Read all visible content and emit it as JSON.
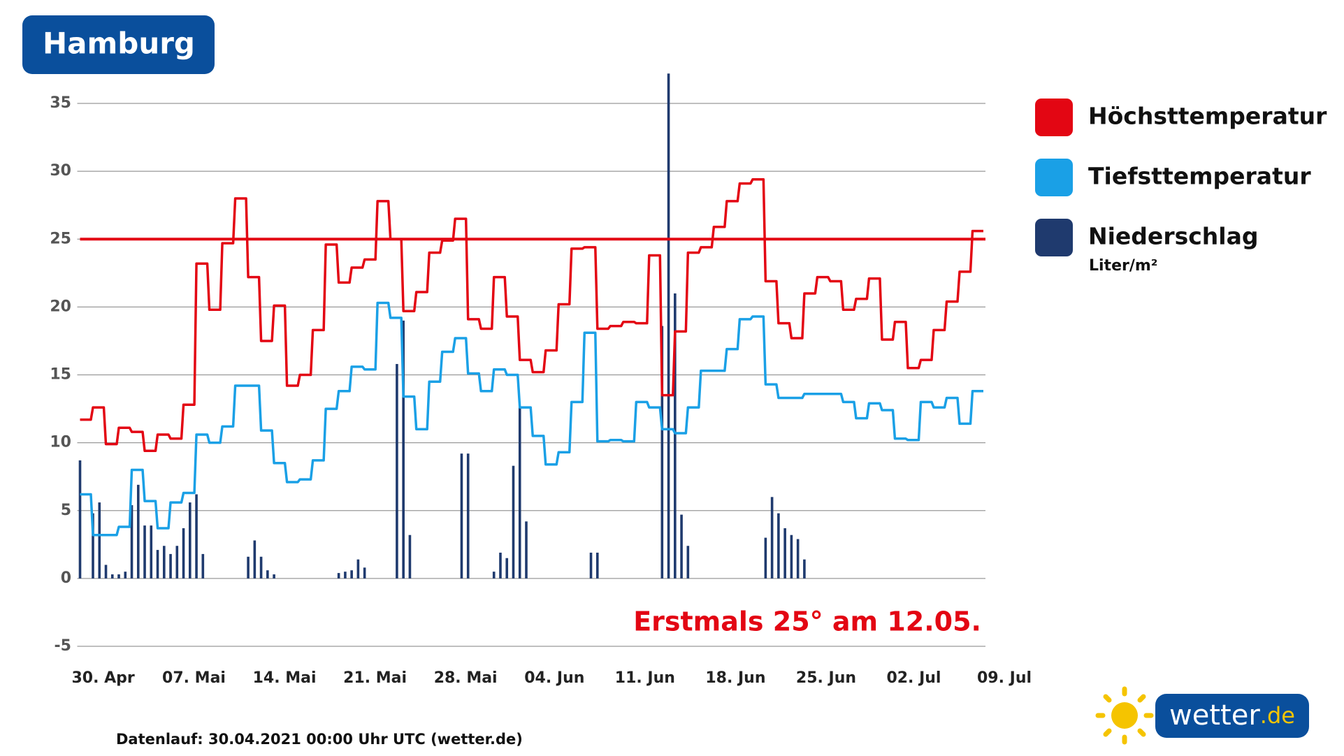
{
  "chart_data": {
    "type": "line",
    "title": "Hamburg",
    "annotation": "Erstmals 25° am 12.05.",
    "footer": "Datenlauf: 30.04.2021 00:00 Uhr UTC (wetter.de)",
    "logo": {
      "name": "wetter",
      "suffix": ".de"
    },
    "unit_label": "Liter/m²",
    "xlim": [
      0,
      70
    ],
    "xticks": [
      {
        "value": 0,
        "label": "30. Apr"
      },
      {
        "value": 7,
        "label": "07. Mai"
      },
      {
        "value": 14,
        "label": "14. Mai"
      },
      {
        "value": 21,
        "label": "21. Mai"
      },
      {
        "value": 28,
        "label": "28. Mai"
      },
      {
        "value": 35,
        "label": "04. Jun"
      },
      {
        "value": 42,
        "label": "11. Jun"
      },
      {
        "value": 49,
        "label": "18. Jun"
      },
      {
        "value": 56,
        "label": "25. Jun"
      },
      {
        "value": 63,
        "label": "02. Jul"
      },
      {
        "value": 70,
        "label": "09. Jul"
      }
    ],
    "ylim": [
      -5,
      35
    ],
    "yticks": [
      -5,
      0,
      5,
      10,
      15,
      20,
      25,
      30,
      35
    ],
    "grid": true,
    "reference_line": {
      "value": 25,
      "color": "#e30613"
    },
    "series": [
      {
        "name": "Höchsttemperatur",
        "type": "step",
        "color": "#e30613",
        "x": [
          0,
          1,
          2,
          3,
          4,
          5,
          6,
          7,
          8,
          9,
          10,
          11,
          12,
          13,
          14,
          15,
          16,
          17,
          18,
          19,
          20,
          21,
          22,
          23,
          24,
          25,
          26,
          27,
          28,
          29,
          30,
          31,
          32,
          33,
          34,
          35,
          36,
          37,
          38,
          39,
          40,
          41,
          42,
          43,
          44,
          45,
          46,
          47,
          48,
          49,
          50,
          51,
          52,
          53,
          54,
          55,
          56,
          57,
          58,
          59,
          60,
          61,
          62,
          63,
          64,
          65,
          66,
          67,
          68,
          69
        ],
        "values": [
          11.7,
          12.6,
          9.9,
          11.1,
          10.8,
          9.4,
          10.6,
          10.3,
          12.8,
          23.2,
          19.8,
          24.7,
          28,
          22.2,
          17.5,
          20.1,
          14.2,
          15,
          18.3,
          24.6,
          21.8,
          22.9,
          23.5,
          27.8,
          25,
          19.7,
          21.1,
          24,
          24.9,
          26.5,
          19.1,
          18.4,
          22.2,
          19.3,
          16.1,
          15.2,
          16.8,
          20.2,
          24.3,
          24.4,
          18.4,
          18.6,
          18.9,
          18.8,
          23.8,
          13.5,
          18.2,
          24,
          24.4,
          25.9,
          27.8,
          29.1,
          29.4,
          21.9,
          18.8,
          17.7,
          21,
          22.2,
          21.9,
          19.8,
          20.6,
          22.1,
          17.6,
          18.9,
          15.5,
          16.1,
          18.3,
          20.4,
          22.6,
          25.6
        ]
      },
      {
        "name": "Tiefsttemperatur",
        "type": "step",
        "color": "#1aa0e6",
        "x": [
          0,
          1,
          2,
          3,
          4,
          5,
          6,
          7,
          8,
          9,
          10,
          11,
          12,
          13,
          14,
          15,
          16,
          17,
          18,
          19,
          20,
          21,
          22,
          23,
          24,
          25,
          26,
          27,
          28,
          29,
          30,
          31,
          32,
          33,
          34,
          35,
          36,
          37,
          38,
          39,
          40,
          41,
          42,
          43,
          44,
          45,
          46,
          47,
          48,
          49,
          50,
          51,
          52,
          53,
          54,
          55,
          56,
          57,
          58,
          59,
          60,
          61,
          62,
          63,
          64,
          65,
          66,
          67,
          68,
          69
        ],
        "values": [
          6.2,
          3.2,
          3.2,
          3.8,
          8,
          5.7,
          3.7,
          5.6,
          6.3,
          10.6,
          10,
          11.2,
          14.2,
          14.2,
          10.9,
          8.5,
          7.1,
          7.3,
          8.7,
          12.5,
          13.8,
          15.6,
          15.4,
          20.3,
          19.2,
          13.4,
          11,
          14.5,
          16.7,
          17.7,
          15.1,
          13.8,
          15.4,
          15,
          12.6,
          10.5,
          8.4,
          9.3,
          13,
          18.1,
          10.1,
          10.2,
          10.1,
          13,
          12.6,
          11,
          10.7,
          12.6,
          15.3,
          15.3,
          16.9,
          19.1,
          19.3,
          14.3,
          13.3,
          13.3,
          13.6,
          13.6,
          13.6,
          13,
          11.8,
          12.9,
          12.4,
          10.3,
          10.2,
          13,
          12.6,
          13.3,
          11.4,
          13.8
        ]
      },
      {
        "name": "Niederschlag",
        "type": "bar",
        "color": "#1f3a6e",
        "x": [
          0,
          1,
          1.5,
          2,
          2.5,
          3,
          3.5,
          4,
          4.5,
          5,
          5.5,
          6,
          6.5,
          7,
          7.5,
          8,
          8.5,
          9,
          9.5,
          13,
          13.5,
          14,
          14.5,
          15,
          20,
          20.5,
          21,
          21.5,
          22,
          24.5,
          25,
          25.5,
          29.5,
          30,
          32,
          32.5,
          33,
          33.5,
          34,
          34.5,
          39.5,
          40,
          45,
          45.5,
          46,
          46.5,
          47,
          53,
          53.5,
          54,
          54.5,
          55,
          55.5,
          56
        ],
        "values": [
          8.7,
          4.8,
          5.6,
          1,
          0.3,
          0.3,
          0.5,
          5.4,
          6.9,
          3.9,
          3.9,
          2.1,
          2.4,
          1.8,
          2.4,
          3.7,
          5.6,
          6.2,
          1.8,
          1.6,
          2.8,
          1.6,
          0.6,
          0.3,
          0.4,
          0.5,
          0.6,
          1.4,
          0.8,
          15.8,
          19,
          3.2,
          9.2,
          9.2,
          0.5,
          1.9,
          1.5,
          8.3,
          12.6,
          4.2,
          1.9,
          1.9,
          18.6,
          37.2,
          21,
          4.7,
          2.4,
          3,
          6,
          4.8,
          3.7,
          3.2,
          2.9,
          1.4
        ]
      }
    ]
  }
}
